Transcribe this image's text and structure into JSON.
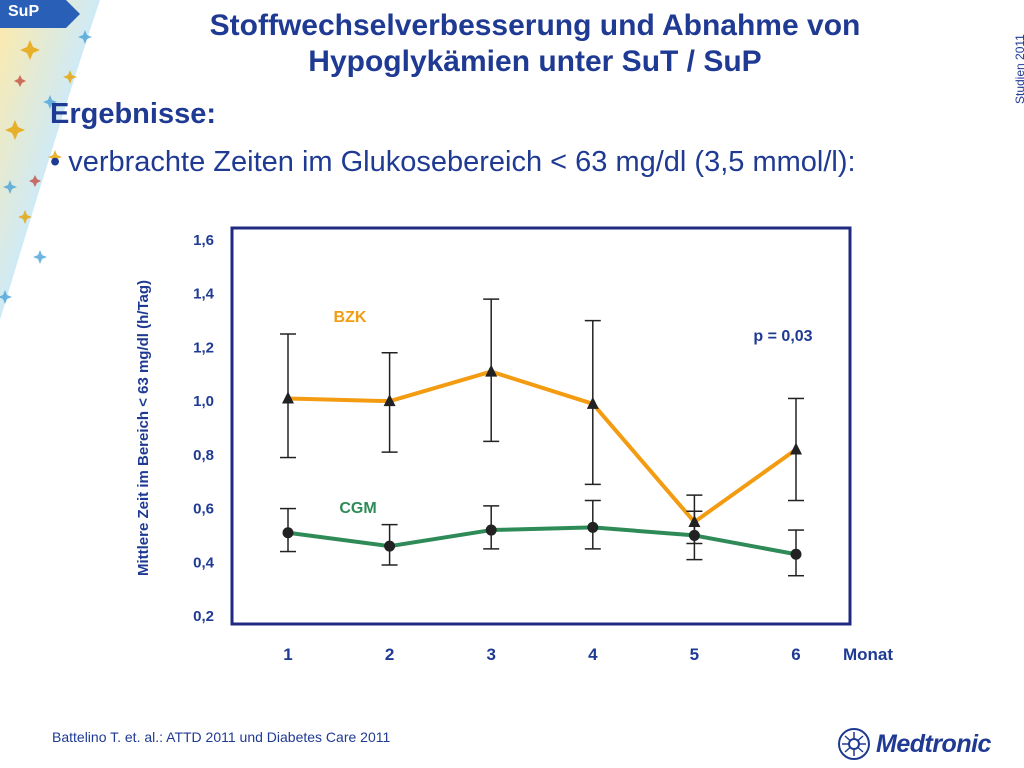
{
  "tag": {
    "label": "SuP"
  },
  "header": {
    "title_line1": "Stoffwechselverbesserung und Abnahme von",
    "title_line2": "Hypoglykämien unter SuT / SuP",
    "side_label": "Studien 2011"
  },
  "content": {
    "heading": "Ergebnisse:",
    "bullet": "• verbrachte Zeiten im Glukosebereich < 63 mg/dl (3,5 mmol/l):"
  },
  "footer": {
    "citation": "Battelino T. et. al.: ATTD 2011 und Diabetes Care 2011"
  },
  "logo": {
    "text": "Medtronic"
  },
  "colors": {
    "title": "#1f3a93",
    "bzk": "#f39c12",
    "cgm": "#2e8b57",
    "frame": "#1f2a80"
  },
  "chart_data": {
    "type": "line",
    "x": [
      1,
      2,
      3,
      4,
      5,
      6
    ],
    "xticklabels": [
      "1",
      "2",
      "3",
      "4",
      "5",
      "6"
    ],
    "xlabel": "Monat",
    "ylabel": "Mittlere Zeit im Bereich < 63 mg/dl (h/Tag)",
    "ylim": [
      0.2,
      1.6
    ],
    "yticks": [
      0.2,
      0.4,
      0.6,
      0.8,
      1.0,
      1.2,
      1.4,
      1.6
    ],
    "yticklabels": [
      "0,2",
      "0,4",
      "0,6",
      "0,8",
      "1,0",
      "1,2",
      "1,4",
      "1,6"
    ],
    "annotation": "p = 0,03",
    "series": [
      {
        "name": "BZK",
        "color": "#f39c12",
        "marker": "triangle",
        "values": [
          1.01,
          1.0,
          1.11,
          0.99,
          0.55,
          0.82
        ],
        "err_low": [
          0.79,
          0.81,
          0.85,
          0.69,
          0.47,
          0.63
        ],
        "err_high": [
          1.25,
          1.18,
          1.38,
          1.3,
          0.65,
          1.01
        ]
      },
      {
        "name": "CGM",
        "color": "#2e8b57",
        "marker": "circle",
        "values": [
          0.51,
          0.46,
          0.52,
          0.53,
          0.5,
          0.43
        ],
        "err_low": [
          0.44,
          0.39,
          0.45,
          0.45,
          0.41,
          0.35
        ],
        "err_high": [
          0.6,
          0.54,
          0.61,
          0.63,
          0.59,
          0.52
        ]
      }
    ]
  }
}
